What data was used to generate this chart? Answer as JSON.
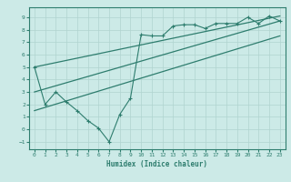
{
  "title": "",
  "xlabel": "Humidex (Indice chaleur)",
  "bg_color": "#cceae7",
  "line_color": "#2e7d6e",
  "grid_color": "#b0d4d0",
  "x_ticks": [
    0,
    1,
    2,
    3,
    4,
    5,
    6,
    7,
    8,
    9,
    10,
    11,
    12,
    13,
    14,
    15,
    16,
    17,
    18,
    19,
    20,
    21,
    22,
    23
  ],
  "y_ticks": [
    -1,
    0,
    1,
    2,
    3,
    4,
    5,
    6,
    7,
    8,
    9
  ],
  "ylim": [
    -1.6,
    9.8
  ],
  "xlim": [
    -0.5,
    23.5
  ],
  "jagged_x": [
    0,
    1,
    2,
    3,
    4,
    5,
    6,
    7,
    8,
    9,
    10,
    11,
    12,
    13,
    14,
    15,
    16,
    17,
    18,
    19,
    20,
    21,
    22,
    23
  ],
  "jagged_y": [
    5.0,
    2.0,
    3.0,
    2.2,
    1.5,
    0.7,
    0.1,
    -1.0,
    1.2,
    2.5,
    7.6,
    7.5,
    7.5,
    8.3,
    8.4,
    8.4,
    8.1,
    8.5,
    8.5,
    8.5,
    9.0,
    8.5,
    9.1,
    8.7
  ],
  "line2_x": [
    0,
    23
  ],
  "line2_y": [
    5.0,
    9.1
  ],
  "line3_x": [
    0,
    23
  ],
  "line3_y": [
    3.0,
    8.7
  ],
  "line4_x": [
    0,
    23
  ],
  "line4_y": [
    1.5,
    7.5
  ]
}
